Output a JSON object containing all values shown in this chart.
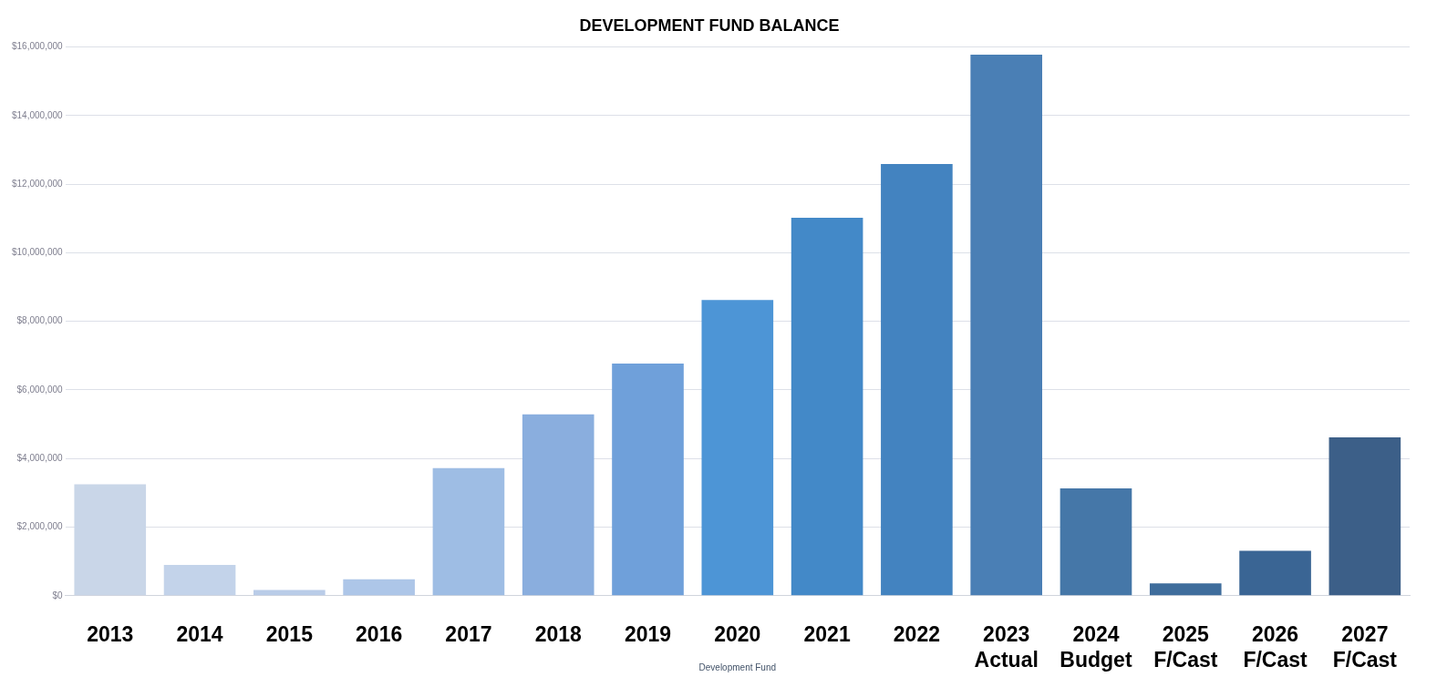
{
  "chart_data": {
    "type": "bar",
    "title": "DEVELOPMENT FUND BALANCE",
    "xlabel": "Development Fund",
    "categories": [
      "2013",
      "2014",
      "2015",
      "2016",
      "2017",
      "2018",
      "2019",
      "2020",
      "2021",
      "2022",
      "2023\nActual",
      "2024\nBudget",
      "2025\nF/Cast",
      "2026\nF/Cast",
      "2027\nF/Cast"
    ],
    "values": [
      3250000,
      900000,
      170000,
      480000,
      3720000,
      5290000,
      6770000,
      8620000,
      11020000,
      12590000,
      15780000,
      3130000,
      360000,
      1310000,
      4620000
    ],
    "colors": [
      "#c9d6e8",
      "#c3d3ea",
      "#b9cce8",
      "#adc6e8",
      "#9ebde4",
      "#8aaede",
      "#6fa0da",
      "#4d95d6",
      "#4389c8",
      "#4383c0",
      "#4a7fb5",
      "#4577a8",
      "#3f6d9c",
      "#3a6594",
      "#3c5f88"
    ],
    "ylim": [
      0,
      16000000
    ],
    "yticks": [
      {
        "value": 0,
        "label": "$0"
      },
      {
        "value": 2000000,
        "label": "$2,000,000"
      },
      {
        "value": 4000000,
        "label": "$4,000,000"
      },
      {
        "value": 6000000,
        "label": "$6,000,000"
      },
      {
        "value": 8000000,
        "label": "$8,000,000"
      },
      {
        "value": 10000000,
        "label": "$10,000,000"
      },
      {
        "value": 12000000,
        "label": "$12,000,000"
      },
      {
        "value": 14000000,
        "label": "$14,000,000"
      },
      {
        "value": 16000000,
        "label": "$16,000,000"
      }
    ],
    "grid": "y",
    "legend": false
  }
}
